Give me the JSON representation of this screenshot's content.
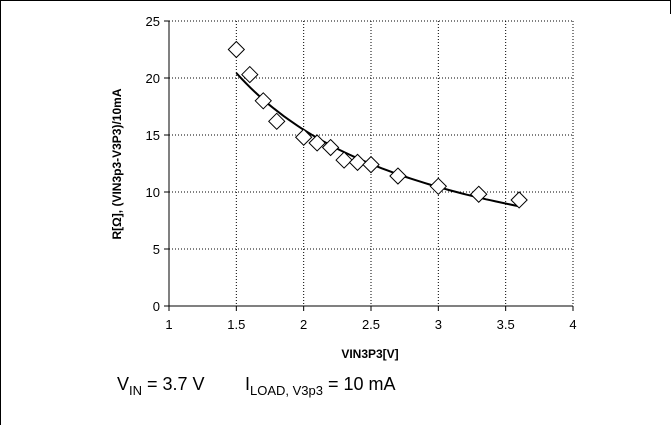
{
  "chart_data": {
    "type": "scatter",
    "xlabel": "VIN3P3[V]",
    "ylabel": "R[Ω], (VIN3p3-V3P3)/10mA",
    "xlim": [
      1,
      4
    ],
    "ylim": [
      0,
      25
    ],
    "xticks": [
      "1",
      "1.5",
      "2",
      "2.5",
      "3",
      "3.5",
      "4"
    ],
    "yticks": [
      "0",
      "5",
      "10",
      "15",
      "20",
      "25"
    ],
    "grid": true,
    "marker": "diamond",
    "series": [
      {
        "points": [
          [
            1.5,
            22.5
          ],
          [
            1.6,
            20.3
          ],
          [
            1.7,
            18.0
          ],
          [
            1.8,
            16.2
          ],
          [
            2.0,
            14.8
          ],
          [
            2.1,
            14.3
          ],
          [
            2.2,
            13.9
          ],
          [
            2.3,
            12.8
          ],
          [
            2.4,
            12.6
          ],
          [
            2.5,
            12.4
          ],
          [
            2.7,
            11.4
          ],
          [
            3.0,
            10.5
          ],
          [
            3.3,
            9.8
          ],
          [
            3.6,
            9.3
          ]
        ],
        "trendline": "power"
      }
    ]
  },
  "caption": {
    "vin_symbol": "V",
    "vin_sub": "IN",
    "vin_value": " = 3.7 V",
    "iload_symbol": "I",
    "iload_sub": "LOAD, V3p3",
    "iload_value": " = 10 mA"
  }
}
